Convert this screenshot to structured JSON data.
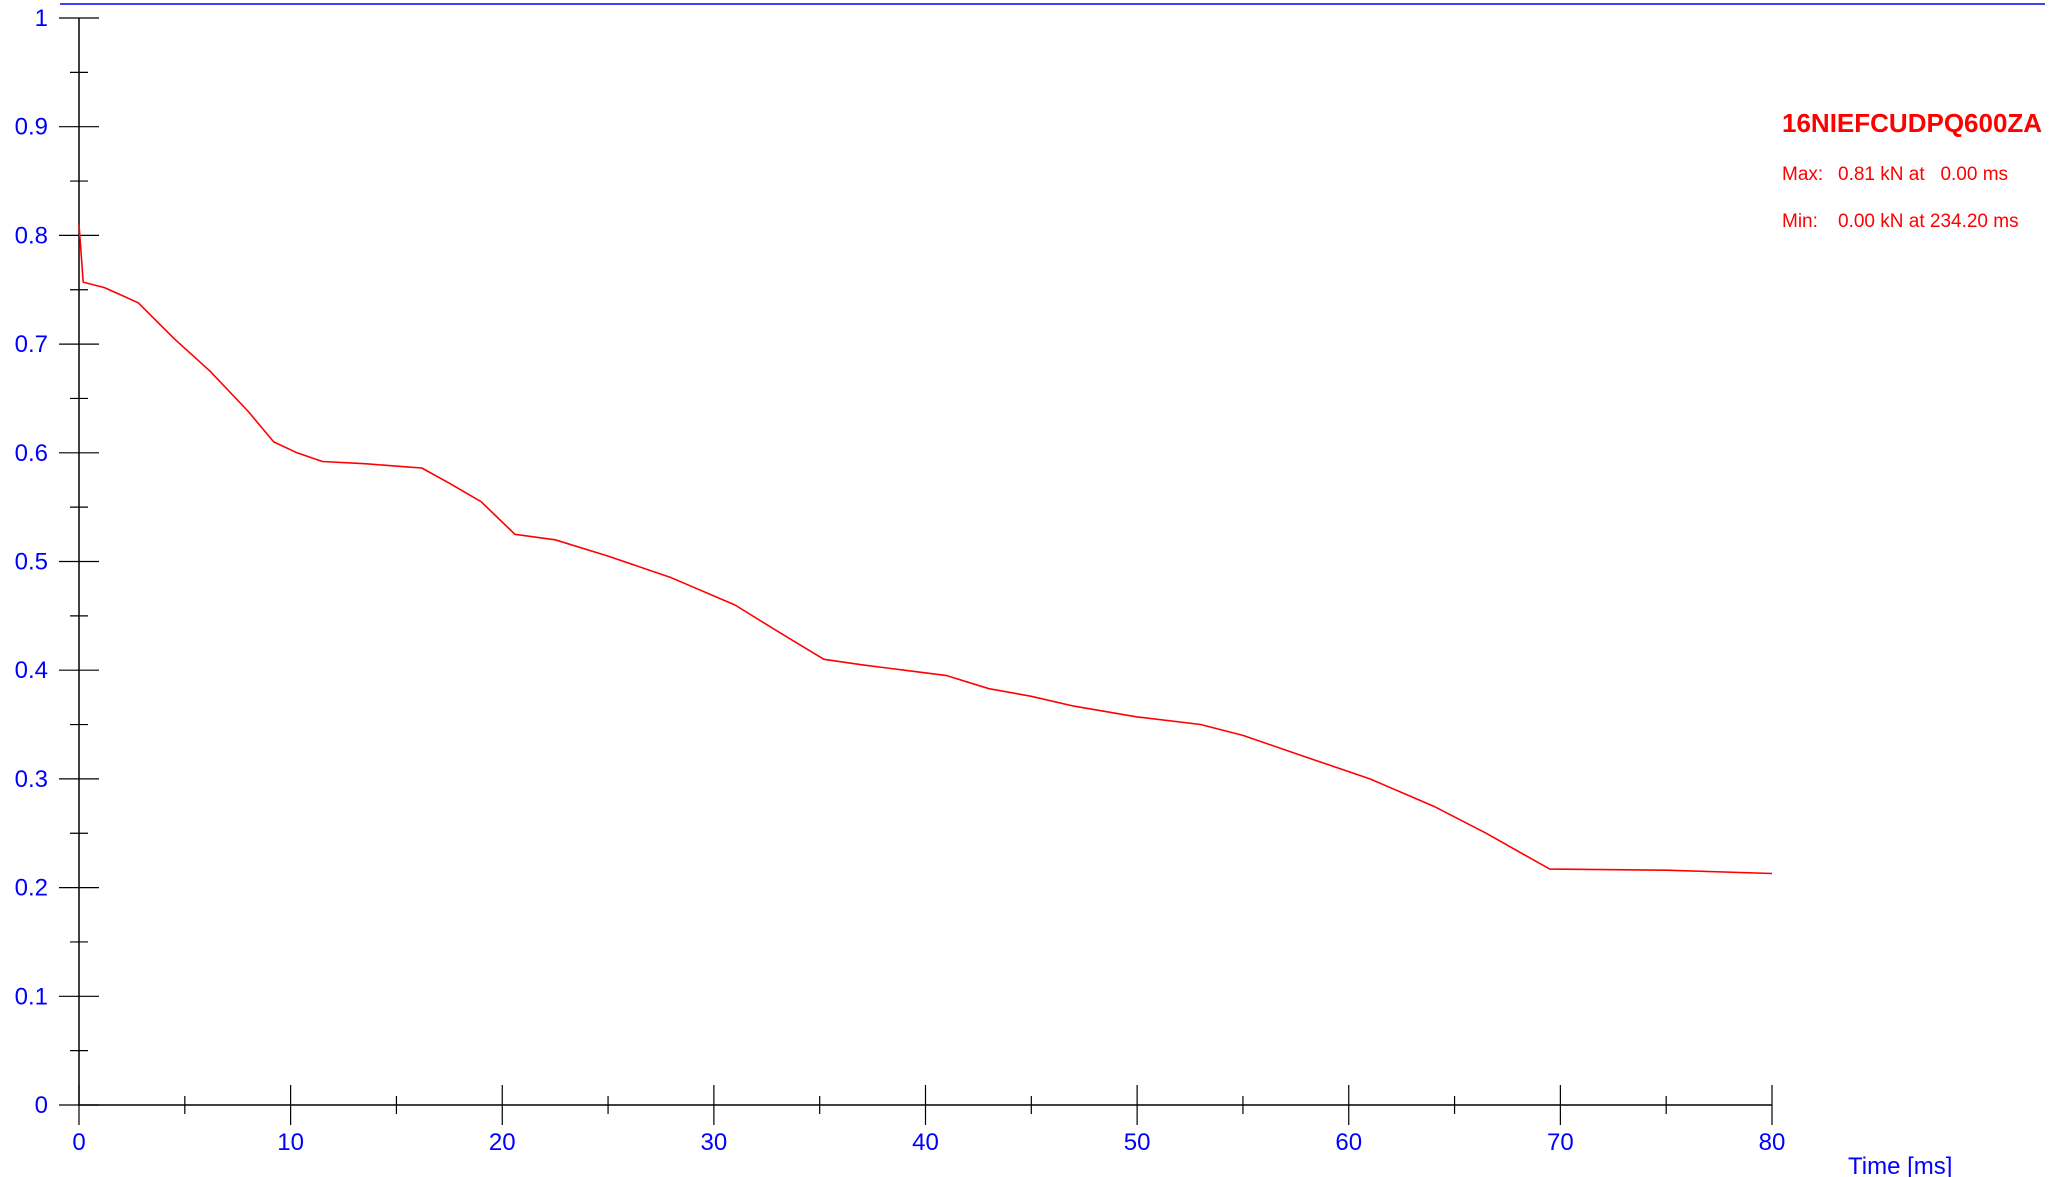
{
  "chart_data": {
    "type": "line",
    "title": "",
    "xlabel": "Time [ms]",
    "ylabel": "",
    "xlim": [
      0,
      80
    ],
    "ylim": [
      0,
      1
    ],
    "x_ticks": [
      0,
      10,
      20,
      30,
      40,
      50,
      60,
      70,
      80
    ],
    "x_tick_labels": [
      "0",
      "10",
      "20",
      "30",
      "40",
      "50",
      "60",
      "70",
      "80"
    ],
    "y_ticks": [
      0,
      0.1,
      0.2,
      0.3,
      0.4,
      0.5,
      0.6,
      0.7,
      0.8,
      0.9,
      1
    ],
    "y_tick_labels": [
      "0",
      "0.1",
      "0.2",
      "0.3",
      "0.4",
      "0.5",
      "0.6",
      "0.7",
      "0.8",
      "0.9",
      "1"
    ],
    "grid": false,
    "legend_position": "top-right",
    "series": [
      {
        "name": "16NIEFCUDPQ600ZA",
        "color": "#ff0000",
        "x": [
          0,
          0.2,
          1.2,
          2.8,
          4.5,
          6.2,
          8.0,
          9.2,
          10.3,
          11.5,
          13.5,
          15.5,
          16.2,
          17.5,
          19.0,
          19.8,
          20.6,
          22.5,
          25.0,
          28.0,
          31.0,
          33.5,
          35.2,
          37.0,
          39.0,
          41.0,
          43.0,
          45.0,
          47.0,
          50.0,
          53.0,
          55.0,
          58.0,
          61.0,
          64.0,
          66.5,
          68.5,
          69.5,
          75.0,
          80.0
        ],
        "y": [
          0.81,
          0.757,
          0.752,
          0.738,
          0.705,
          0.675,
          0.638,
          0.61,
          0.6,
          0.592,
          0.59,
          0.587,
          0.586,
          0.572,
          0.555,
          0.54,
          0.525,
          0.52,
          0.505,
          0.485,
          0.46,
          0.43,
          0.41,
          0.405,
          0.4,
          0.395,
          0.383,
          0.376,
          0.367,
          0.357,
          0.35,
          0.34,
          0.32,
          0.3,
          0.275,
          0.25,
          0.228,
          0.217,
          0.216,
          0.213
        ]
      }
    ],
    "annotations": [
      {
        "label": "Max:",
        "value": "0.81 kN at   0.00 ms"
      },
      {
        "label": "Min:",
        "value": "0.00 kN at 234.20 ms"
      }
    ]
  },
  "colors": {
    "axis": "#000000",
    "tick_label": "#0000ff",
    "top_border": "#0000ff",
    "series": "#ff0000"
  }
}
